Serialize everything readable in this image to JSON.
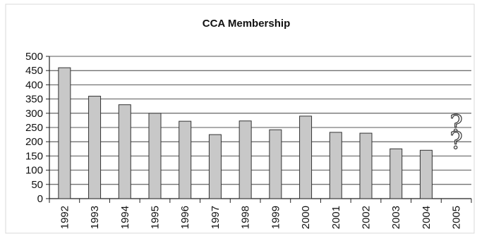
{
  "chart_data": {
    "type": "bar",
    "title": "CCA Membership",
    "xlabel": "",
    "ylabel": "",
    "categories": [
      "1992",
      "1993",
      "1994",
      "1995",
      "1996",
      "1997",
      "1998",
      "1999",
      "2000",
      "2001",
      "2002",
      "2003",
      "2004",
      "2005"
    ],
    "values": [
      460,
      360,
      330,
      300,
      272,
      225,
      273,
      242,
      290,
      233,
      230,
      175,
      170,
      null
    ],
    "ylim": [
      0,
      500
    ],
    "yticks": [
      0,
      50,
      100,
      150,
      200,
      250,
      300,
      350,
      400,
      450,
      500
    ],
    "grid": true,
    "legend": "none",
    "bar_color": "#c8c8c8",
    "annotations": [
      {
        "text": "?",
        "category": "2005",
        "y": 265
      },
      {
        "text": "?",
        "category": "2005",
        "y": 205
      }
    ]
  }
}
